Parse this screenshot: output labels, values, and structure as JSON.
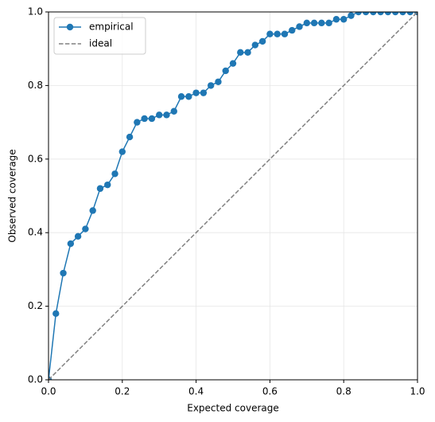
{
  "chart_data": {
    "type": "line",
    "xlabel": "Expected coverage",
    "ylabel": "Observed coverage",
    "xlim": [
      0,
      1
    ],
    "ylim": [
      0,
      1
    ],
    "xticks": [
      {
        "value": 0,
        "label": "0.0"
      },
      0.2,
      0.4,
      0.6,
      0.8,
      {
        "value": 1,
        "label": "1.0"
      }
    ],
    "yticks": [
      {
        "value": 0,
        "label": "0.0"
      },
      0.2,
      0.4,
      0.6,
      0.8,
      {
        "value": 1,
        "label": "1.0"
      }
    ],
    "grid": true,
    "legend": "upper left",
    "series": [
      {
        "name": "empirical",
        "color": "#1f77b4",
        "marker": true,
        "dash": false,
        "x": [
          0,
          0.02,
          0.04,
          0.06,
          0.08,
          0.1,
          0.12,
          0.14,
          0.16,
          0.18,
          0.2,
          0.22,
          0.24,
          0.26,
          0.28,
          0.3,
          0.32,
          0.34,
          0.36,
          0.38,
          0.4,
          0.42,
          0.44,
          0.46,
          0.48,
          0.5,
          0.52,
          0.54,
          0.56,
          0.58,
          0.6,
          0.62,
          0.64,
          0.66,
          0.68,
          0.7,
          0.72,
          0.74,
          0.76,
          0.78,
          0.8,
          0.82,
          0.84,
          0.86,
          0.88,
          0.9,
          0.92,
          0.94,
          0.96,
          0.98,
          1
        ],
        "values": [
          0,
          0.18,
          0.29,
          0.37,
          0.39,
          0.41,
          0.46,
          0.52,
          0.53,
          0.56,
          0.62,
          0.66,
          0.7,
          0.71,
          0.71,
          0.72,
          0.72,
          0.73,
          0.77,
          0.77,
          0.78,
          0.78,
          0.8,
          0.81,
          0.84,
          0.86,
          0.89,
          0.89,
          0.91,
          0.92,
          0.94,
          0.94,
          0.94,
          0.95,
          0.96,
          0.97,
          0.97,
          0.97,
          0.97,
          0.98,
          0.98,
          0.99,
          1,
          1,
          1,
          1,
          1,
          1,
          1,
          1,
          1
        ]
      },
      {
        "name": "ideal",
        "color": "#808080",
        "marker": false,
        "dash": true,
        "x": [
          0,
          1
        ],
        "values": [
          0,
          1
        ]
      }
    ]
  }
}
